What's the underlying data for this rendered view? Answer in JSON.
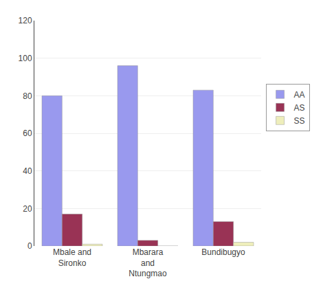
{
  "chart_data": {
    "type": "bar",
    "categories": [
      "Mbale and\nSironko",
      "Mbarara\nand\nNtungmao",
      "Bundibugyo"
    ],
    "series": [
      {
        "name": "AA",
        "color": "#9999ee",
        "values": [
          80,
          96,
          83
        ]
      },
      {
        "name": "AS",
        "color": "#993355",
        "values": [
          17,
          3,
          13
        ]
      },
      {
        "name": "SS",
        "color": "#eeeebb",
        "values": [
          1,
          0,
          2
        ]
      }
    ],
    "ylim": [
      0,
      120
    ],
    "yticks": [
      0,
      20,
      40,
      60,
      80,
      100,
      120
    ],
    "grid": true,
    "legend": "right"
  }
}
